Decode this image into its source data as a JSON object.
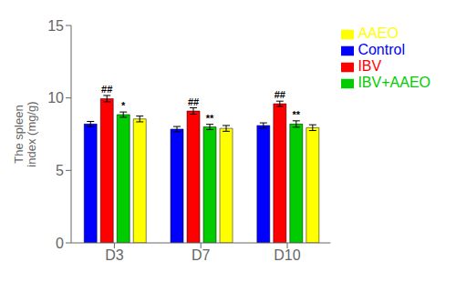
{
  "chart_data": {
    "type": "bar",
    "categories": [
      "D3",
      "D7",
      "D10"
    ],
    "series": [
      {
        "name": "Control",
        "color": "#0000FF",
        "values": [
          8.2,
          7.85,
          8.1
        ],
        "errors": [
          0.18,
          0.18,
          0.18
        ]
      },
      {
        "name": "IBV",
        "color": "#FF0000",
        "values": [
          9.95,
          9.1,
          9.6
        ],
        "errors": [
          0.22,
          0.22,
          0.18
        ]
      },
      {
        "name": "IBV+AAEO",
        "color": "#00CC00",
        "values": [
          8.85,
          8.0,
          8.2
        ],
        "errors": [
          0.18,
          0.18,
          0.22
        ]
      },
      {
        "name": "AAEO",
        "color": "#FFFF00",
        "values": [
          8.55,
          7.9,
          7.95
        ],
        "errors": [
          0.2,
          0.2,
          0.2
        ]
      }
    ],
    "ylabel": "The spleen\nindex (mg/g)",
    "ylim": [
      0,
      15
    ],
    "yticks": [
      0,
      5,
      10,
      15
    ],
    "annotations": [
      {
        "category": "D3",
        "series": "IBV",
        "text": "##"
      },
      {
        "category": "D3",
        "series": "IBV+AAEO",
        "text": "*"
      },
      {
        "category": "D7",
        "series": "IBV",
        "text": "##"
      },
      {
        "category": "D7",
        "series": "IBV+AAEO",
        "text": "**"
      },
      {
        "category": "D10",
        "series": "IBV",
        "text": "##"
      },
      {
        "category": "D10",
        "series": "IBV+AAEO",
        "text": "**"
      }
    ],
    "grid": false,
    "legend": "right"
  }
}
